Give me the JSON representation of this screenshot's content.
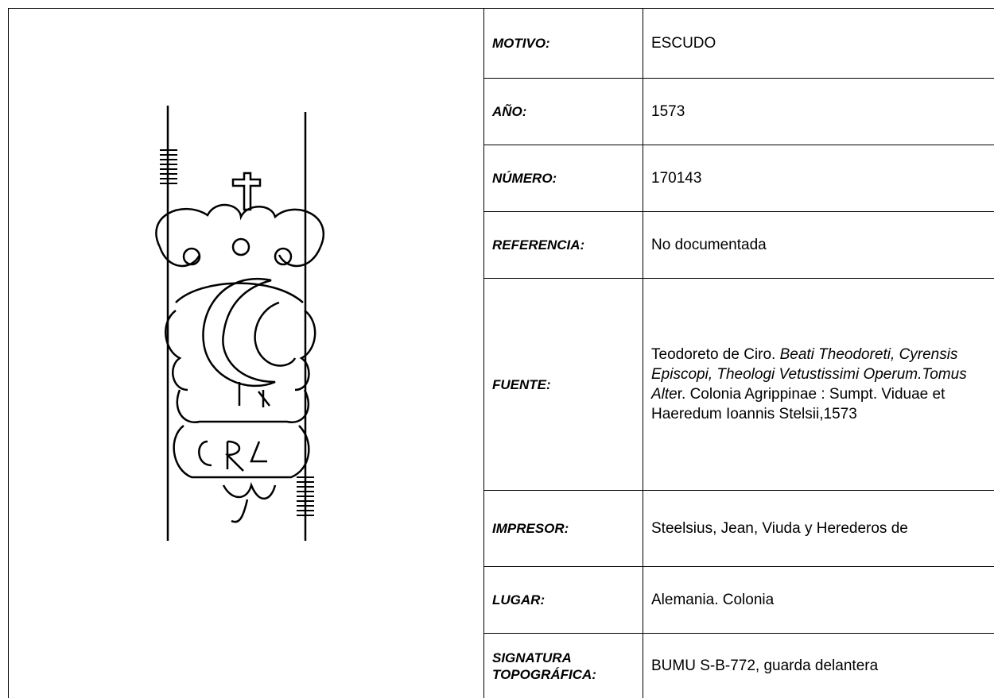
{
  "table": {
    "rows": [
      {
        "label": "MOTIVO:",
        "value": "ESCUDO"
      },
      {
        "label": "AÑO:",
        "value": "1573"
      },
      {
        "label": "NÚMERO:",
        "value": "170143"
      },
      {
        "label": "REFERENCIA:",
        "value": "No documentada"
      },
      {
        "label": "FUENTE:",
        "value": [
          {
            "text": "Teodoreto de Ciro. ",
            "italic": false
          },
          {
            "text": "Beati Theodoreti, Cyrensis Episcopi, Theologi Vetustissimi Operum.Tomus Alte",
            "italic": true
          },
          {
            "text": "r. Colonia Agrippinae : Sumpt. Viduae et Haeredum Ioannis Stelsii,1573",
            "italic": false
          }
        ]
      },
      {
        "label": "IMPRESOR:",
        "value": "Steelsius, Jean, Viuda y Herederos de"
      },
      {
        "label": "LUGAR:",
        "value": "Alemania. Colonia"
      },
      {
        "label": "SIGNATURA TOPOGRÁFICA:",
        "value": "BUMU S-B-772, guarda delantera"
      }
    ]
  }
}
